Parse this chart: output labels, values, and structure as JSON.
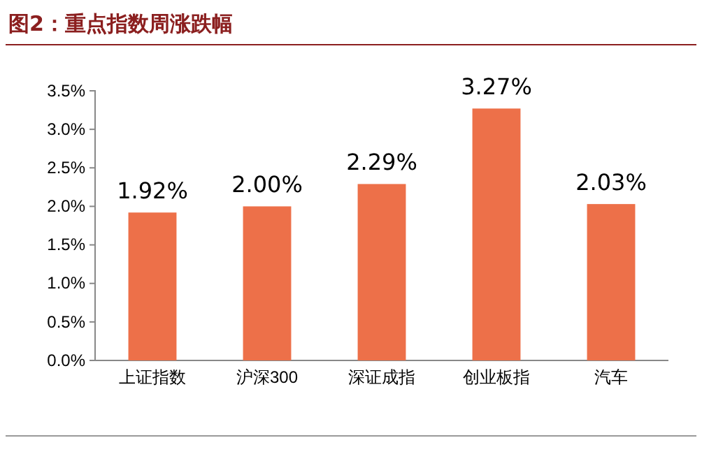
{
  "chart_data": {
    "type": "bar",
    "title": "图2：重点指数周涨跌幅",
    "categories": [
      "上证指数",
      "沪深300",
      "深证成指",
      "创业板指",
      "汽车"
    ],
    "values": [
      1.92,
      2.0,
      2.29,
      3.27,
      2.03
    ],
    "value_labels": [
      "1.92%",
      "2.00%",
      "2.29%",
      "3.27%",
      "2.03%"
    ],
    "color": "#ed7049",
    "ylim": [
      0,
      3.5
    ],
    "yticks": [
      {
        "value": 0,
        "label": "0.0%"
      },
      {
        "value": 0.5,
        "label": "0.5%"
      },
      {
        "value": 1,
        "label": "1.0%"
      },
      {
        "value": 1.5,
        "label": "1.5%"
      },
      {
        "value": 2,
        "label": "2.0%"
      },
      {
        "value": 2.5,
        "label": "2.5%"
      },
      {
        "value": 3,
        "label": "3.0%"
      },
      {
        "value": 3.5,
        "label": "3.5%"
      }
    ],
    "grid": false
  }
}
